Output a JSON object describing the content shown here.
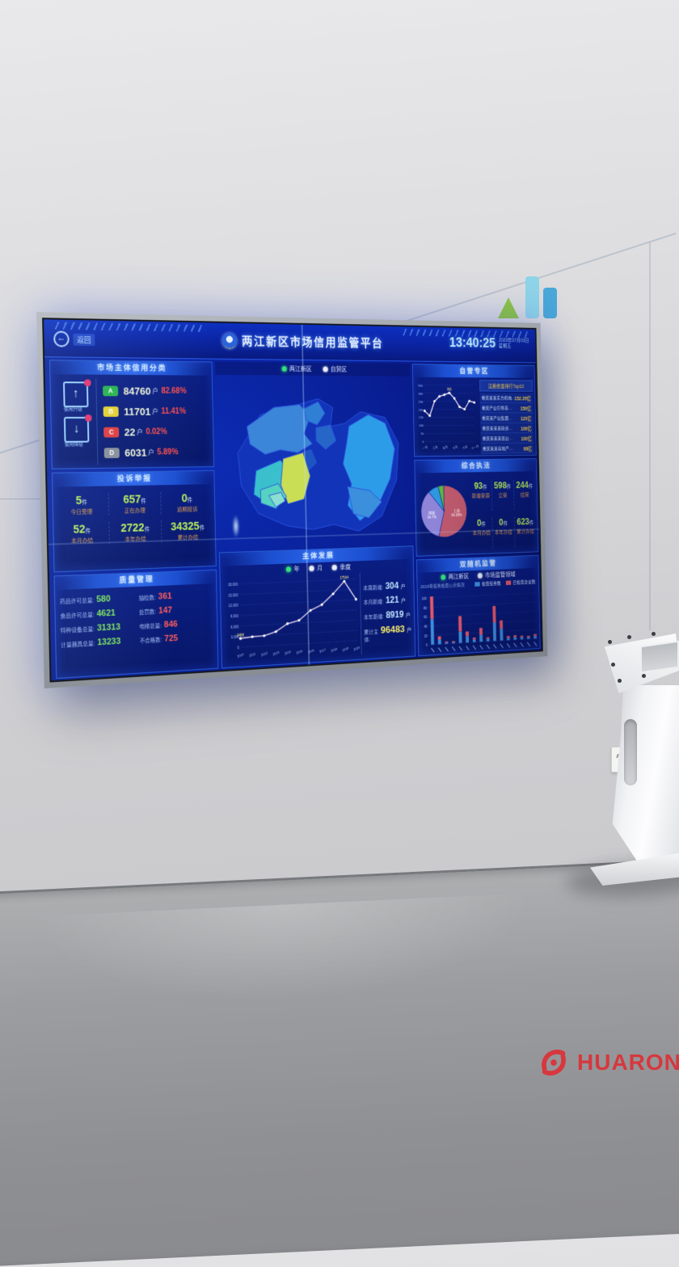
{
  "scene": {
    "logo": {
      "text": "HUARONG",
      "color": "#d6383e"
    },
    "decal_colors": {
      "green": "#8fc641",
      "teal": "#8fd4e8",
      "blue": "#4aa8d8"
    }
  },
  "screen": {
    "header": {
      "back_label": "返回",
      "title": "两江新区市场信用监管平台",
      "clock": "13:40:25",
      "date": "2020年07月03日",
      "weekday": "星期五"
    },
    "credit_panel": {
      "title": "市场主体信用分类",
      "up_label": "信用升级",
      "down_label": "信用降级",
      "rows": [
        {
          "grade": "A",
          "color": "#27b24a",
          "count": "84760",
          "unit": "户",
          "pct": "82.68%"
        },
        {
          "grade": "B",
          "color": "#e8d32a",
          "count": "11701",
          "unit": "户",
          "pct": "11.41%"
        },
        {
          "grade": "C",
          "color": "#e23b3b",
          "count": "22",
          "unit": "户",
          "pct": "0.02%"
        },
        {
          "grade": "D",
          "color": "#8a8f98",
          "count": "6031",
          "unit": "户",
          "pct": "5.89%"
        }
      ]
    },
    "complaint_panel": {
      "title": "投诉举报",
      "stats": [
        {
          "value": "5",
          "unit": "件",
          "label": "今日受理"
        },
        {
          "value": "657",
          "unit": "件",
          "label": "正在办理"
        },
        {
          "value": "0",
          "unit": "件",
          "label": "逾期投诉"
        },
        {
          "value": "52",
          "unit": "件",
          "label": "本月办结"
        },
        {
          "value": "2722",
          "unit": "件",
          "label": "本年办结"
        },
        {
          "value": "34325",
          "unit": "件",
          "label": "累计办结"
        }
      ]
    },
    "quality_panel": {
      "title": "质量管理",
      "rows": [
        {
          "llabel": "药品许可总量:",
          "lvalue": "580",
          "rlabel": "抽检数:",
          "rvalue": "361"
        },
        {
          "llabel": "食品许可总量:",
          "lvalue": "4621",
          "rlabel": "处罚数:",
          "rvalue": "147"
        },
        {
          "llabel": "特种设备总量:",
          "lvalue": "31313",
          "rlabel": "电梯总量:",
          "rvalue": "846"
        },
        {
          "llabel": "计量器具总量:",
          "lvalue": "13233",
          "rlabel": "不合格数:",
          "rvalue": "725"
        }
      ]
    },
    "map_panel": {
      "options": [
        {
          "label": "两江新区",
          "selected": true
        },
        {
          "label": "自贸区",
          "selected": false
        }
      ]
    },
    "development_panel": {
      "title": "主体发展",
      "options": [
        {
          "label": "年",
          "selected": true
        },
        {
          "label": "月",
          "selected": false
        },
        {
          "label": "季度",
          "selected": false
        }
      ],
      "stats": [
        {
          "label": "本周新增:",
          "value": "304",
          "unit": "户"
        },
        {
          "label": "本月新增:",
          "value": "121",
          "unit": "户"
        },
        {
          "label": "本年新增:",
          "value": "8919",
          "unit": "户"
        },
        {
          "label": "累计主体:",
          "value": "96483",
          "unit": "户"
        }
      ]
    },
    "selfrun_panel": {
      "title": "自营专区",
      "list_title": "注册资金排行Top10",
      "list": [
        {
          "name": "重庆某某东方机电…",
          "value": "152.35亿"
        },
        {
          "name": "重庆产业引导基…",
          "value": "150亿"
        },
        {
          "name": "重庆某产业集团…",
          "value": "120亿"
        },
        {
          "name": "重庆某某某投资…",
          "value": "100亿"
        },
        {
          "name": "重庆某某某置业…",
          "value": "100亿"
        },
        {
          "name": "重庆某某房地产…",
          "value": "98亿"
        }
      ]
    },
    "enforcement_panel": {
      "title": "综合执法",
      "stats": [
        {
          "value": "93",
          "unit": "件",
          "label": "新增案源"
        },
        {
          "value": "598",
          "unit": "件",
          "label": "立案"
        },
        {
          "value": "244",
          "unit": "件",
          "label": "结案"
        },
        {
          "value": "0",
          "unit": "件",
          "label": "本月办结"
        },
        {
          "value": "0",
          "unit": "件",
          "label": "本年办结"
        },
        {
          "value": "623",
          "unit": "件",
          "label": "累计办结"
        }
      ]
    },
    "random_panel": {
      "title": "双随机监管",
      "options": [
        {
          "label": "两江新区",
          "selected": true
        },
        {
          "label": "市场监管领域",
          "selected": false
        }
      ],
      "subtitle": "2019年任务检查公示情况",
      "legend": [
        {
          "label": "检查任务数",
          "color": "#3f8fe0"
        },
        {
          "label": "已检查企业数",
          "color": "#e85a6a"
        }
      ]
    }
  },
  "chart_data": [
    {
      "id": "dev-line",
      "type": "line",
      "title": "主体发展",
      "categories": [
        "2010",
        "2011",
        "2012",
        "2013",
        "2014",
        "2015",
        "2016",
        "2017",
        "2018",
        "2019",
        "2020"
      ],
      "values": [
        2488,
        2800,
        2900,
        3900,
        6000,
        6800,
        9500,
        11000,
        14000,
        17504,
        12100
      ],
      "ylim": [
        0,
        18000
      ],
      "yticks": [
        0,
        3000,
        6000,
        9000,
        12000,
        15000,
        18000
      ],
      "annotations": [
        {
          "index": 0,
          "text": "2488"
        },
        {
          "index": 9,
          "text": "17504"
        }
      ],
      "line_color": "#d8c8ee",
      "dot_color": "#ffffff",
      "legend_position": "top"
    },
    {
      "id": "selfrun-line",
      "type": "line",
      "title": "自营专区",
      "categories": [
        "一月",
        "二月",
        "三月",
        "四月",
        "五月",
        "六月",
        "七月",
        "八月",
        "九月",
        "十月",
        "十一月"
      ],
      "xtick_every": 2,
      "values": [
        190,
        160,
        250,
        280,
        290,
        302,
        268,
        215,
        200,
        252,
        243
      ],
      "ylim": [
        0,
        350
      ],
      "yticks": [
        0,
        50,
        100,
        150,
        200,
        250,
        300,
        350
      ],
      "annotations": [
        {
          "index": 5,
          "text": "302"
        }
      ],
      "line_color": "#e8d8f0",
      "dot_color": "#ffffff"
    },
    {
      "id": "enforce-pie",
      "type": "pie",
      "title": "综合执法",
      "slices": [
        {
          "label": "工商",
          "pct": 54.05,
          "color": "#c05a6e",
          "show_label": true
        },
        {
          "label": "网格",
          "pct": 34.7,
          "color": "#8e84d8",
          "show_label": true
        },
        {
          "label": "",
          "pct": 7.5,
          "color": "#2f96e0",
          "show_label": false
        },
        {
          "label": "",
          "pct": 3.75,
          "color": "#5cb840",
          "show_label": false
        }
      ]
    },
    {
      "id": "random-bars",
      "type": "bar",
      "title": "双随机监管",
      "stacked": true,
      "xlabels_illegible": true,
      "ylim": [
        0,
        110
      ],
      "yticks": [
        0,
        20,
        40,
        60,
        80,
        100
      ],
      "series": [
        {
          "name": "检查任务数",
          "color": "#3f8fe0",
          "values": [
            55,
            10,
            3,
            3,
            25,
            14,
            6,
            15,
            6,
            40,
            26,
            5,
            6,
            5,
            4,
            6
          ]
        },
        {
          "name": "已检查企业数",
          "color": "#e85a6a",
          "values": [
            48,
            7,
            2,
            2,
            33,
            10,
            4,
            15,
            3,
            36,
            18,
            4,
            4,
            3,
            3,
            4
          ]
        }
      ]
    }
  ]
}
